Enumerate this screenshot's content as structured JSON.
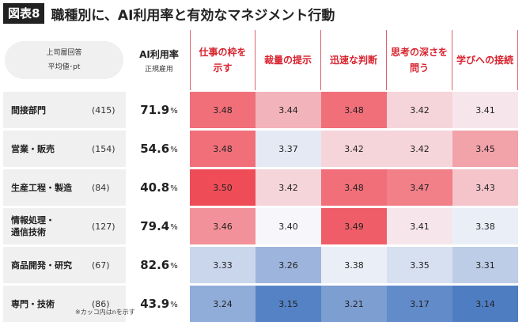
{
  "figure": {
    "label": "図表8",
    "title": "職種別に、AI利用率と有効なマネジメント行動"
  },
  "header": {
    "left_line1": "上司層回答",
    "left_line2": "平均値･pt",
    "ai_line1": "AI利用率",
    "ai_line2": "正規雇用"
  },
  "note": "※カッコ内はnを示す",
  "chart_data": {
    "type": "heatmap",
    "title": "職種別に、AI利用率と有効なマネジメント行動",
    "columns": [
      "仕事の枠を\n示す",
      "裁量の提示",
      "迅速な判断",
      "思考の深さを\n問う",
      "学びへの接続"
    ],
    "rows": [
      {
        "name": "間接部門",
        "n": "(415)",
        "ai_rate": "71.9",
        "values": [
          3.48,
          3.44,
          3.48,
          3.42,
          3.41
        ]
      },
      {
        "name": "営業・販売",
        "n": "(154)",
        "ai_rate": "54.6",
        "values": [
          3.48,
          3.37,
          3.42,
          3.42,
          3.45
        ]
      },
      {
        "name": "生産工程・製造",
        "n": "(84)",
        "ai_rate": "40.8",
        "values": [
          3.5,
          3.42,
          3.48,
          3.47,
          3.43
        ]
      },
      {
        "name": "情報処理・\n通信技術",
        "n": "(127)",
        "ai_rate": "79.4",
        "values": [
          3.46,
          3.4,
          3.49,
          3.41,
          3.38
        ]
      },
      {
        "name": "商品開発・研究",
        "n": "(67)",
        "ai_rate": "82.6",
        "values": [
          3.33,
          3.26,
          3.38,
          3.35,
          3.31
        ]
      },
      {
        "name": "専門・技術",
        "n": "(86)",
        "ai_rate": "43.9",
        "values": [
          3.24,
          3.15,
          3.21,
          3.17,
          3.14
        ]
      }
    ],
    "ai_unit": "%",
    "value_range": [
      3.14,
      3.5
    ],
    "colors": {
      "low": "#4f7dc2",
      "mid": "#f7f7fb",
      "high": "#ee4d58",
      "header": "#d8232f"
    }
  }
}
